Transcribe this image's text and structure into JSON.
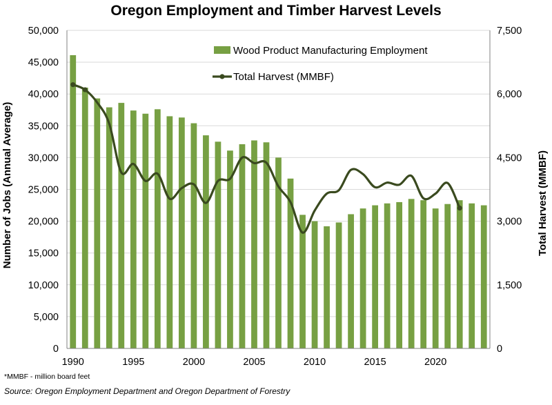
{
  "chart_data": {
    "type": "bar+line",
    "title": "Oregon Employment and Timber Harvest Levels",
    "ylabel_left": "Number of Jobs (Annual Average)",
    "ylabel_right": "Total Harvest (MMBF)",
    "ylim_left": [
      0,
      50000
    ],
    "ylim_right": [
      0,
      7500
    ],
    "yticks_left": [
      "0",
      "5,000",
      "10,000",
      "15,000",
      "20,000",
      "25,000",
      "30,000",
      "35,000",
      "40,000",
      "45,000",
      "50,000"
    ],
    "yticks_right": [
      "0",
      "1,500",
      "3,000",
      "4,500",
      "6,000",
      "7,500"
    ],
    "xticks": [
      "1990",
      "1995",
      "2000",
      "2005",
      "2010",
      "2015",
      "2020"
    ],
    "grid": true,
    "legend_position": "top-right",
    "colors": {
      "bar": "#77a043",
      "line": "#3a4a1f"
    },
    "series": [
      {
        "name": "Wood Product Manufacturing Employment",
        "type": "bar",
        "axis": "left",
        "x": [
          1990,
          1991,
          1992,
          1993,
          1994,
          1995,
          1996,
          1997,
          1998,
          1999,
          2000,
          2001,
          2002,
          2003,
          2004,
          2005,
          2006,
          2007,
          2008,
          2009,
          2010,
          2011,
          2012,
          2013,
          2014,
          2015,
          2016,
          2017,
          2018,
          2019,
          2020,
          2021,
          2022,
          2023,
          2024
        ],
        "values": [
          46100,
          41000,
          39300,
          37900,
          38600,
          37400,
          36900,
          37600,
          36500,
          36300,
          35400,
          33500,
          32500,
          31100,
          32100,
          32700,
          32400,
          30000,
          26700,
          21000,
          20000,
          19200,
          19800,
          21100,
          22000,
          22500,
          22800,
          23000,
          23500,
          23300,
          22000,
          22700,
          23300,
          22800,
          22500
        ]
      },
      {
        "name": "Total Harvest (MMBF)",
        "type": "line",
        "axis": "right",
        "x": [
          1990,
          1991,
          1992,
          1993,
          1994,
          1995,
          1996,
          1997,
          1998,
          1999,
          2000,
          2001,
          2002,
          2003,
          2004,
          2005,
          2006,
          2007,
          2008,
          2009,
          2010,
          2011,
          2012,
          2013,
          2014,
          2015,
          2016,
          2017,
          2018,
          2019,
          2020,
          2021,
          2022
        ],
        "values": [
          6220,
          6100,
          5800,
          5300,
          4150,
          4350,
          3950,
          4120,
          3530,
          3780,
          3870,
          3430,
          3950,
          4000,
          4500,
          4370,
          4380,
          3820,
          3450,
          2730,
          3250,
          3650,
          3730,
          4210,
          4110,
          3800,
          3910,
          3860,
          4070,
          3540,
          3650,
          3900,
          3310
        ]
      }
    ]
  },
  "footnote": "*MMBF - million board feet",
  "source": "Source: Oregon Employment Department and Oregon Department of Forestry"
}
